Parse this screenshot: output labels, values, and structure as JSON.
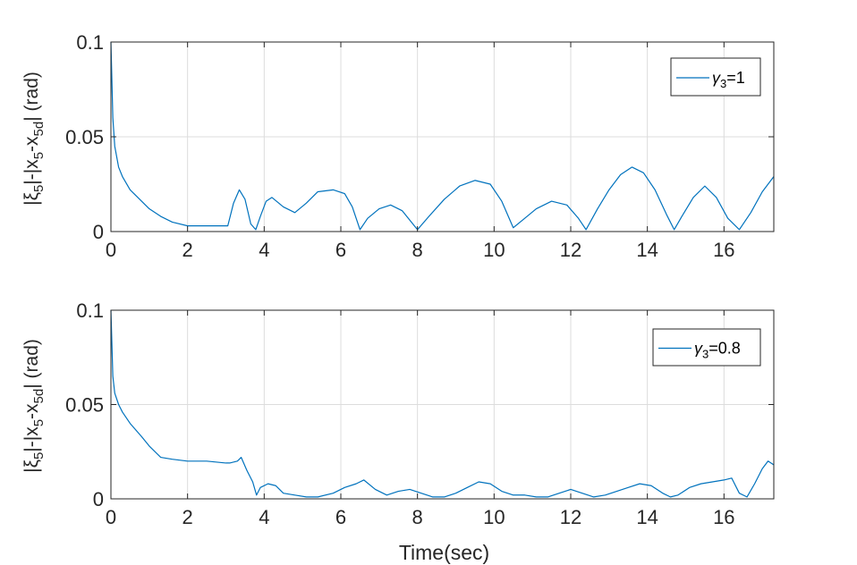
{
  "chart_data": [
    {
      "type": "line",
      "xlabel": "",
      "ylabel": {
        "pre": "|ξ",
        "s1": "5",
        "mid": "|-|x",
        "s2": "5",
        "mid2": "-x",
        "s3": "5d",
        "post": "| (rad)"
      },
      "xlim": [
        0,
        17.3
      ],
      "ylim": [
        0,
        0.1
      ],
      "xticks": [
        "0",
        "2",
        "4",
        "6",
        "8",
        "10",
        "12",
        "14",
        "16"
      ],
      "yticks": [
        "0",
        "0.05",
        "0.1"
      ],
      "grid": true,
      "legend_position": "top-right",
      "legend": {
        "sym": "γ",
        "sub": "3",
        "rest": "=1"
      },
      "color": "#0072BD",
      "series": [
        {
          "x": [
            0,
            0.05,
            0.1,
            0.2,
            0.3,
            0.5,
            0.8,
            1.0,
            1.3,
            1.6,
            2.0,
            2.5,
            2.9,
            3.05,
            3.2,
            3.35,
            3.5,
            3.65,
            3.78,
            3.9,
            4.05,
            4.2,
            4.5,
            4.8,
            5.1,
            5.4,
            5.8,
            6.1,
            6.3,
            6.5,
            6.7,
            7.0,
            7.3,
            7.6,
            7.8,
            8.0,
            8.3,
            8.7,
            9.1,
            9.5,
            9.9,
            10.2,
            10.5,
            10.8,
            11.1,
            11.5,
            11.9,
            12.2,
            12.4,
            12.7,
            13.0,
            13.3,
            13.6,
            13.9,
            14.2,
            14.5,
            14.7,
            14.9,
            15.2,
            15.5,
            15.8,
            16.1,
            16.4,
            16.7,
            17.0,
            17.3
          ],
          "y": [
            0.1,
            0.06,
            0.045,
            0.034,
            0.029,
            0.022,
            0.016,
            0.012,
            0.008,
            0.005,
            0.003,
            0.003,
            0.003,
            0.003,
            0.015,
            0.022,
            0.017,
            0.004,
            0.001,
            0.008,
            0.016,
            0.018,
            0.013,
            0.01,
            0.015,
            0.021,
            0.022,
            0.02,
            0.013,
            0.001,
            0.007,
            0.012,
            0.014,
            0.011,
            0.006,
            0.001,
            0.008,
            0.017,
            0.024,
            0.027,
            0.025,
            0.016,
            0.002,
            0.007,
            0.012,
            0.016,
            0.014,
            0.007,
            0.001,
            0.012,
            0.022,
            0.03,
            0.034,
            0.031,
            0.022,
            0.009,
            0.001,
            0.008,
            0.018,
            0.024,
            0.018,
            0.007,
            0.001,
            0.01,
            0.021,
            0.029
          ]
        }
      ]
    },
    {
      "type": "line",
      "xlabel": "Time(sec)",
      "ylabel": {
        "pre": "|ξ",
        "s1": "5",
        "mid": "|-|x",
        "s2": "5",
        "mid2": "-x",
        "s3": "5d",
        "post": "| (rad)"
      },
      "xlim": [
        0,
        17.3
      ],
      "ylim": [
        0,
        0.1
      ],
      "xticks": [
        "0",
        "2",
        "4",
        "6",
        "8",
        "10",
        "12",
        "14",
        "16"
      ],
      "yticks": [
        "0",
        "0.05",
        "0.1"
      ],
      "grid": true,
      "legend_position": "top-right",
      "legend": {
        "sym": "γ",
        "sub": "3",
        "rest": "=0.8"
      },
      "color": "#0072BD",
      "series": [
        {
          "x": [
            0,
            0.05,
            0.1,
            0.2,
            0.3,
            0.5,
            0.8,
            1.0,
            1.3,
            1.6,
            2.0,
            2.5,
            3.0,
            3.1,
            3.3,
            3.4,
            3.55,
            3.7,
            3.8,
            3.9,
            4.1,
            4.3,
            4.5,
            4.8,
            5.1,
            5.4,
            5.8,
            6.1,
            6.4,
            6.6,
            6.9,
            7.2,
            7.5,
            7.8,
            8.1,
            8.4,
            8.7,
            9.0,
            9.3,
            9.6,
            9.9,
            10.2,
            10.5,
            10.8,
            11.1,
            11.4,
            11.7,
            12.0,
            12.3,
            12.6,
            12.9,
            13.2,
            13.5,
            13.8,
            14.1,
            14.4,
            14.6,
            14.8,
            15.1,
            15.4,
            15.7,
            16.0,
            16.2,
            16.4,
            16.6,
            16.8,
            17.0,
            17.15,
            17.3
          ],
          "y": [
            0.1,
            0.065,
            0.056,
            0.05,
            0.046,
            0.04,
            0.033,
            0.028,
            0.022,
            0.021,
            0.02,
            0.02,
            0.019,
            0.019,
            0.02,
            0.022,
            0.015,
            0.009,
            0.002,
            0.006,
            0.008,
            0.007,
            0.003,
            0.002,
            0.001,
            0.001,
            0.003,
            0.006,
            0.008,
            0.01,
            0.005,
            0.002,
            0.004,
            0.005,
            0.003,
            0.001,
            0.001,
            0.003,
            0.006,
            0.009,
            0.008,
            0.004,
            0.002,
            0.002,
            0.001,
            0.001,
            0.003,
            0.005,
            0.003,
            0.001,
            0.002,
            0.004,
            0.006,
            0.008,
            0.007,
            0.003,
            0.001,
            0.002,
            0.006,
            0.008,
            0.009,
            0.01,
            0.011,
            0.003,
            0.001,
            0.008,
            0.016,
            0.02,
            0.018
          ]
        }
      ]
    }
  ]
}
